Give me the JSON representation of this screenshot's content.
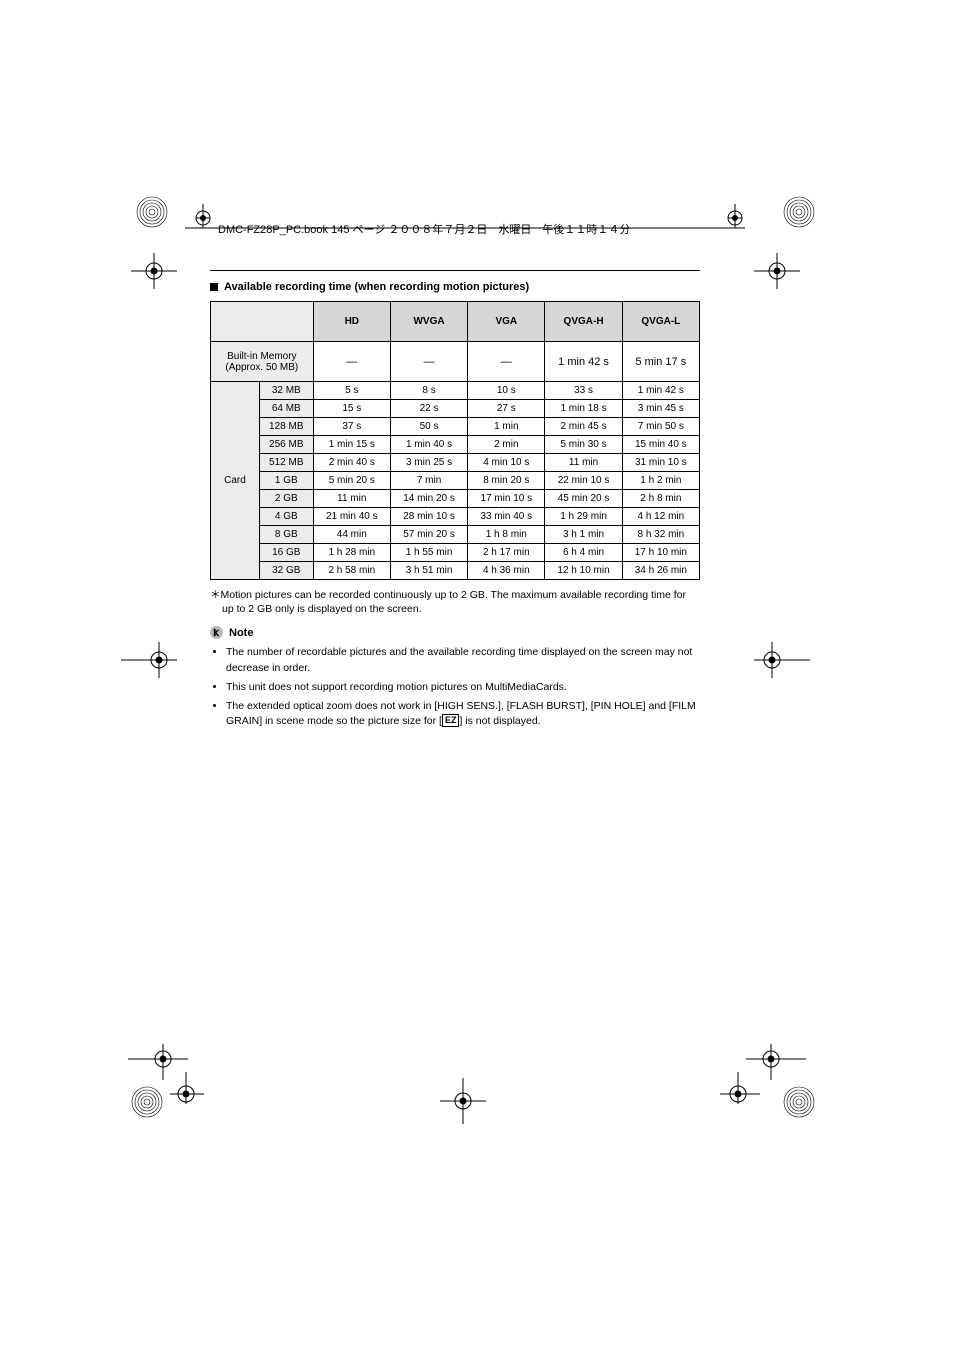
{
  "header": {
    "filename": "DMC-FZ28P_PC.book  145 ページ  ２００８年７月２日　水曜日　午後１１時１４分"
  },
  "section": {
    "title": "Available recording time (when recording motion pictures)"
  },
  "table": {
    "columns": [
      "HD",
      "WVGA",
      "VGA",
      "QVGA-H",
      "QVGA-L"
    ],
    "builtin_row": {
      "label": "Built-in Memory (Approx. 50 MB)",
      "cells": [
        "—",
        "—",
        "—",
        "1 min 42 s",
        "5 min 17 s"
      ]
    },
    "card_label": "Card",
    "card_rows": [
      {
        "size": "32 MB",
        "cells": [
          "5 s",
          "8 s",
          "10 s",
          "33 s",
          "1 min 42 s"
        ]
      },
      {
        "size": "64 MB",
        "cells": [
          "15 s",
          "22 s",
          "27 s",
          "1 min 18 s",
          "3 min 45 s"
        ]
      },
      {
        "size": "128 MB",
        "cells": [
          "37 s",
          "50 s",
          "1 min",
          "2 min 45 s",
          "7 min 50 s"
        ]
      },
      {
        "size": "256 MB",
        "cells": [
          "1 min 15 s",
          "1 min 40 s",
          "2 min",
          "5 min 30 s",
          "15 min 40 s"
        ]
      },
      {
        "size": "512 MB",
        "cells": [
          "2 min 40 s",
          "3 min 25 s",
          "4 min 10 s",
          "11 min",
          "31 min 10 s"
        ]
      },
      {
        "size": "1 GB",
        "cells": [
          "5 min 20 s",
          "7 min",
          "8 min 20 s",
          "22 min 10 s",
          "1 h 2 min"
        ]
      },
      {
        "size": "2 GB",
        "cells": [
          "11 min",
          "14 min 20 s",
          "17 min 10 s",
          "45 min 20 s",
          "2 h 8 min"
        ]
      },
      {
        "size": "4 GB",
        "cells": [
          "21 min 40 s",
          "28 min 10 s",
          "33 min 40 s",
          "1 h 29 min",
          "4 h 12 min"
        ]
      },
      {
        "size": "8 GB",
        "cells": [
          "44 min",
          "57 min 20 s",
          "1 h 8 min",
          "3 h 1 min",
          "8 h 32 min"
        ]
      },
      {
        "size": "16 GB",
        "cells": [
          "1 h 28 min",
          "1 h 55 min",
          "2 h 17 min",
          "6 h 4 min",
          "17 h 10 min"
        ]
      },
      {
        "size": "32 GB",
        "cells": [
          "2 h 58 min",
          "3 h 51 min",
          "4 h 36 min",
          "12 h 10 min",
          "34 h 26 min"
        ]
      }
    ]
  },
  "footnote": "Motion pictures can be recorded continuously up to 2 GB. The maximum available recording time for up to 2 GB only is displayed on the screen.",
  "note": {
    "title": "Note",
    "items": [
      "The number of recordable pictures and the available recording time displayed on the screen may not decrease in order.",
      "This unit does not support recording motion pictures on MultiMediaCards.",
      "The extended optical zoom does not work in [HIGH SENS.], [FLASH BURST], [PIN HOLE] and [FILM GRAIN] in scene mode so the picture size for [  ] is not displayed."
    ],
    "ez_label": "EZ"
  },
  "colors": {
    "header_bg": "#d6d6d6",
    "rowhead_bg": "#ececec",
    "border": "#000000",
    "text": "#000000",
    "background": "#ffffff"
  },
  "page_number": "145"
}
